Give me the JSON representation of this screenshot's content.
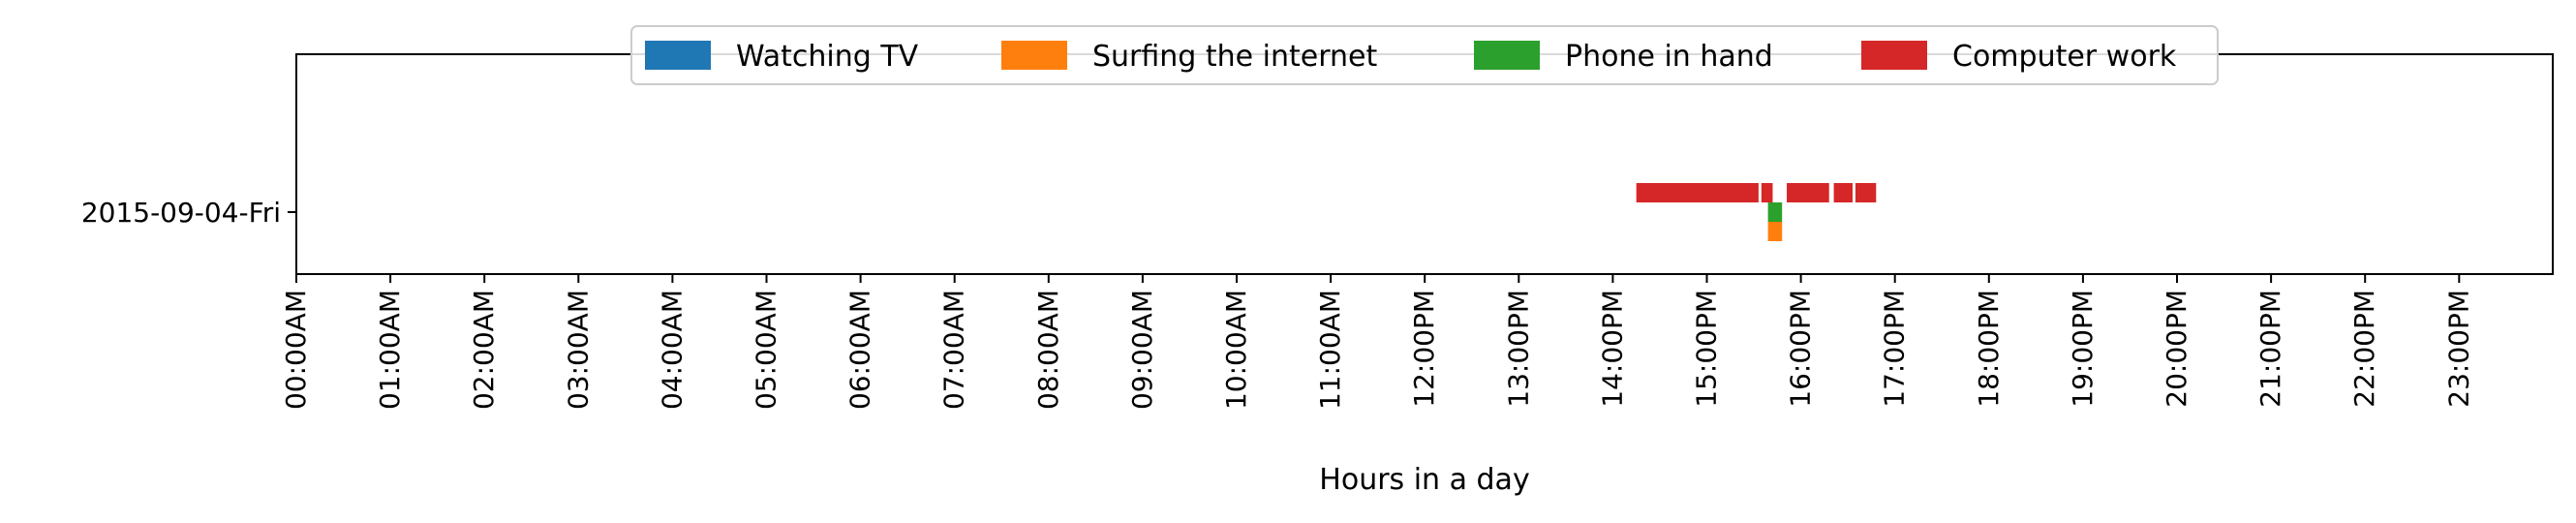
{
  "chart_data": {
    "type": "bar",
    "orientation": "horizontal-timeline",
    "title": "",
    "xlabel": "Hours in a day",
    "ylabel": "",
    "x_unit": "hours",
    "xlim": [
      0,
      24
    ],
    "x_ticks": [
      0,
      1,
      2,
      3,
      4,
      5,
      6,
      7,
      8,
      9,
      10,
      11,
      12,
      13,
      14,
      15,
      16,
      17,
      18,
      19,
      20,
      21,
      22,
      23
    ],
    "x_tick_labels": [
      "00:00AM",
      "01:00AM",
      "02:00AM",
      "03:00AM",
      "04:00AM",
      "05:00AM",
      "06:00AM",
      "07:00AM",
      "08:00AM",
      "09:00AM",
      "10:00AM",
      "11:00AM",
      "12:00PM",
      "13:00PM",
      "14:00PM",
      "15:00PM",
      "16:00PM",
      "17:00PM",
      "18:00PM",
      "19:00PM",
      "20:00PM",
      "21:00PM",
      "22:00PM",
      "23:00PM"
    ],
    "categories": [
      "2015-09-04-Fri"
    ],
    "grid": false,
    "legend_position": "top-center",
    "series": [
      {
        "name": "Watching TV",
        "color": "#1f77b4",
        "lane": -0.2,
        "intervals": []
      },
      {
        "name": "Surfing the internet",
        "color": "#ff7f0e",
        "lane": -0.2,
        "intervals": [
          {
            "category": "2015-09-04-Fri",
            "start": 15.65,
            "end": 15.8
          }
        ]
      },
      {
        "name": "Phone in hand",
        "color": "#2ca02c",
        "lane": 0.0,
        "intervals": [
          {
            "category": "2015-09-04-Fri",
            "start": 15.65,
            "end": 15.8
          }
        ]
      },
      {
        "name": "Computer work",
        "color": "#d62728",
        "lane": 0.2,
        "intervals": [
          {
            "category": "2015-09-04-Fri",
            "start": 14.25,
            "end": 15.55
          },
          {
            "category": "2015-09-04-Fri",
            "start": 15.58,
            "end": 15.7
          },
          {
            "category": "2015-09-04-Fri",
            "start": 15.85,
            "end": 16.3
          },
          {
            "category": "2015-09-04-Fri",
            "start": 16.35,
            "end": 16.55
          },
          {
            "category": "2015-09-04-Fri",
            "start": 16.58,
            "end": 16.8
          }
        ]
      }
    ]
  }
}
